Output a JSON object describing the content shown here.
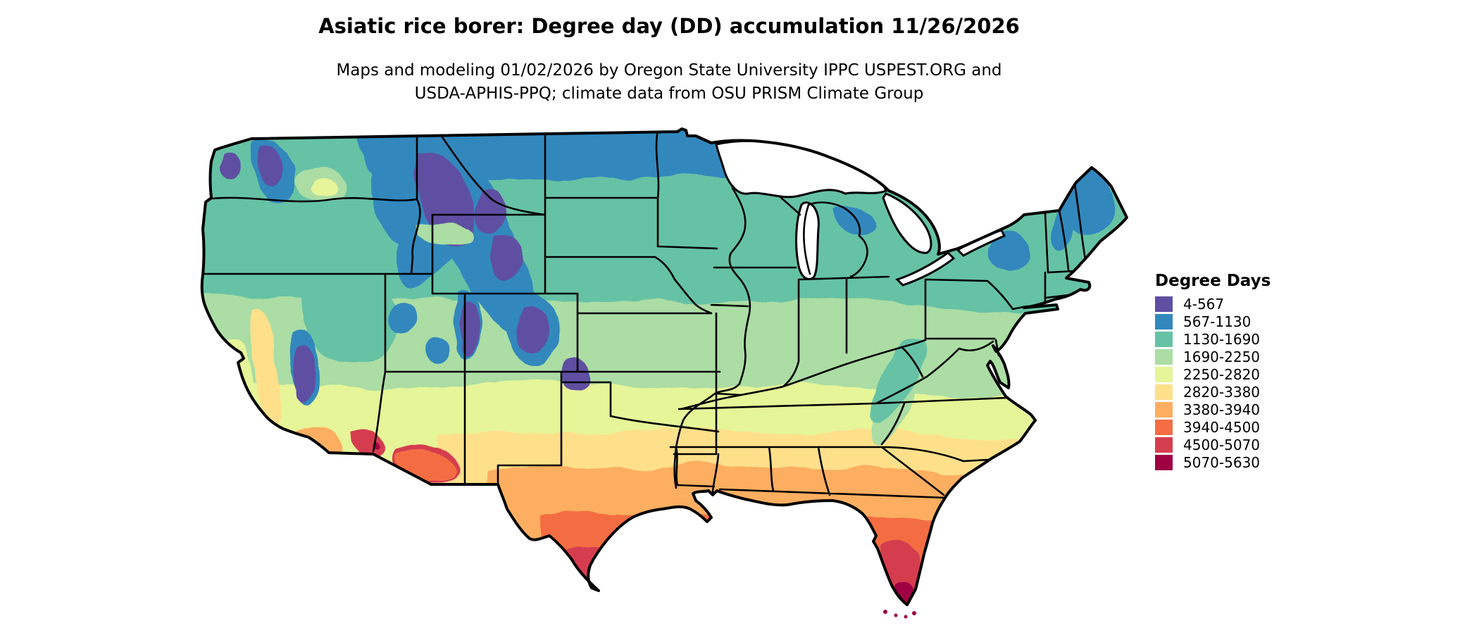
{
  "header": {
    "title": "Asiatic rice borer: Degree day (DD) accumulation 11/26/2026",
    "subtitle_line1": "Maps and modeling 01/02/2026 by Oregon State University IPPC USPEST.ORG and",
    "subtitle_line2": "USDA-APHIS-PPQ; climate data from OSU PRISM Climate Group"
  },
  "legend": {
    "title": "Degree Days",
    "items": [
      {
        "label": "4-567",
        "color": "#5e4fa2"
      },
      {
        "label": "567-1130",
        "color": "#3288bd"
      },
      {
        "label": "1130-1690",
        "color": "#66c2a5"
      },
      {
        "label": "1690-2250",
        "color": "#abdda4"
      },
      {
        "label": "2250-2820",
        "color": "#e6f598"
      },
      {
        "label": "2820-3380",
        "color": "#fee08b"
      },
      {
        "label": "3380-3940",
        "color": "#fdae61"
      },
      {
        "label": "3940-4500",
        "color": "#f46d43"
      },
      {
        "label": "4500-5070",
        "color": "#d53e4f"
      },
      {
        "label": "5070-5630",
        "color": "#9e0142"
      }
    ]
  },
  "map": {
    "type": "choropleth-raster",
    "region": "Contiguous United States",
    "variable": "Degree Days (DD) accumulation",
    "border_color": "#000000",
    "water_color": "#ffffff"
  }
}
